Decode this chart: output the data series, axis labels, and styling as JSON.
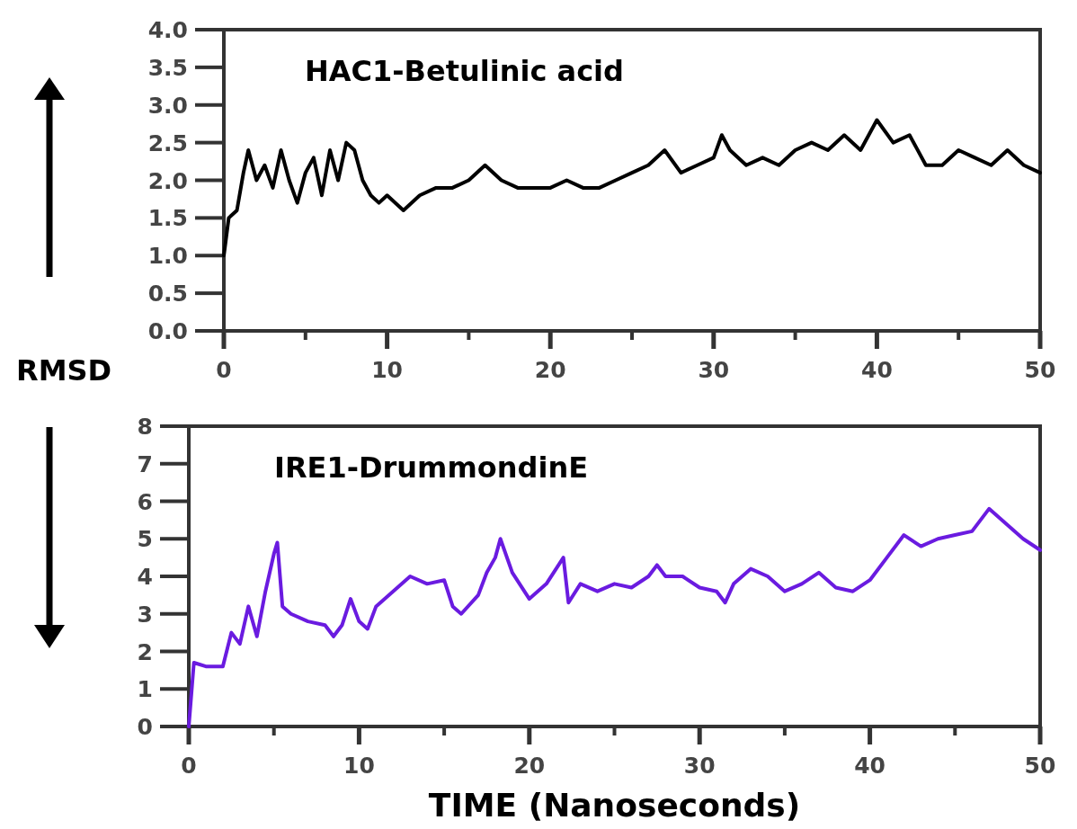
{
  "chart_data": [
    {
      "type": "line",
      "title": "HAC1-Betulinic acid",
      "ylabel": "RMSD",
      "xlim": [
        0,
        50
      ],
      "ylim": [
        0,
        4
      ],
      "xticks": [
        0,
        {
          "value": 5,
          "label": null
        },
        10,
        {
          "value": 15,
          "label": null
        },
        20,
        {
          "value": 25,
          "label": null
        },
        30,
        {
          "value": 35,
          "label": null
        },
        40,
        {
          "value": 45,
          "label": null
        },
        50
      ],
      "yticks": [
        {
          "value": 0,
          "label": "0.0"
        },
        0.5,
        {
          "value": 1,
          "label": "1.0"
        },
        1.5,
        {
          "value": 2,
          "label": "2.0"
        },
        2.5,
        {
          "value": 3,
          "label": "3.0"
        },
        3.5,
        {
          "value": 4,
          "label": "4.0"
        }
      ],
      "grid": false,
      "series": [
        {
          "color": "#000000",
          "x": [
            0,
            0.3,
            0.8,
            1.2,
            1.5,
            2,
            2.5,
            3,
            3.5,
            4,
            4.5,
            5,
            5.5,
            6,
            6.5,
            7,
            7.5,
            8,
            8.5,
            9,
            9.5,
            10,
            11,
            12,
            13,
            14,
            15,
            16,
            17,
            18,
            19,
            20,
            21,
            22,
            23,
            24,
            25,
            26,
            27,
            28,
            29,
            30,
            30.5,
            31,
            32,
            33,
            34,
            35,
            36,
            37,
            38,
            39,
            40,
            41,
            42,
            43,
            44,
            45,
            46,
            47,
            48,
            49,
            50
          ],
          "values": [
            1.0,
            1.5,
            1.6,
            2.1,
            2.4,
            2.0,
            2.2,
            1.9,
            2.4,
            2.0,
            1.7,
            2.1,
            2.3,
            1.8,
            2.4,
            2.0,
            2.5,
            2.4,
            2.0,
            1.8,
            1.7,
            1.8,
            1.6,
            1.8,
            1.9,
            1.9,
            2.0,
            2.2,
            2.0,
            1.9,
            1.9,
            1.9,
            2.0,
            1.9,
            1.9,
            2.0,
            2.1,
            2.2,
            2.4,
            2.1,
            2.2,
            2.3,
            2.6,
            2.4,
            2.2,
            2.3,
            2.2,
            2.4,
            2.5,
            2.4,
            2.6,
            2.4,
            2.8,
            2.5,
            2.6,
            2.2,
            2.2,
            2.4,
            2.3,
            2.2,
            2.4,
            2.2,
            2.1
          ]
        }
      ]
    },
    {
      "type": "line",
      "title": "IRE1-DrummondinE",
      "xlabel": "TIME (Nanoseconds)",
      "xlim": [
        0,
        50
      ],
      "ylim": [
        0,
        8
      ],
      "xticks": [
        0,
        {
          "value": 5,
          "label": null
        },
        10,
        {
          "value": 15,
          "label": null
        },
        20,
        {
          "value": 25,
          "label": null
        },
        30,
        {
          "value": 35,
          "label": null
        },
        40,
        {
          "value": 45,
          "label": null
        },
        50
      ],
      "yticks": [
        0,
        1,
        2,
        3,
        4,
        5,
        6,
        7,
        8
      ],
      "grid": false,
      "series": [
        {
          "color": "#6a1be0",
          "x": [
            0,
            0.3,
            1,
            2,
            2.5,
            3,
            3.5,
            4,
            4.5,
            5,
            5.2,
            5.5,
            6,
            7,
            8,
            8.5,
            9,
            9.5,
            10,
            10.5,
            11,
            12,
            13,
            14,
            15,
            15.5,
            16,
            17,
            17.5,
            18,
            18.3,
            19,
            20,
            21,
            22,
            22.3,
            23,
            24,
            25,
            26,
            27,
            27.5,
            28,
            29,
            30,
            31,
            31.5,
            32,
            33,
            34,
            35,
            36,
            37,
            38,
            39,
            40,
            41,
            42,
            43,
            44,
            45,
            46,
            47,
            48,
            49,
            50
          ],
          "values": [
            0,
            1.7,
            1.6,
            1.6,
            2.5,
            2.2,
            3.2,
            2.4,
            3.6,
            4.6,
            4.9,
            3.2,
            3.0,
            2.8,
            2.7,
            2.4,
            2.7,
            3.4,
            2.8,
            2.6,
            3.2,
            3.6,
            4.0,
            3.8,
            3.9,
            3.2,
            3.0,
            3.5,
            4.1,
            4.5,
            5.0,
            4.1,
            3.4,
            3.8,
            4.5,
            3.3,
            3.8,
            3.6,
            3.8,
            3.7,
            4.0,
            4.3,
            4.0,
            4.0,
            3.7,
            3.6,
            3.3,
            3.8,
            4.2,
            4.0,
            3.6,
            3.8,
            4.1,
            3.7,
            3.6,
            3.9,
            4.5,
            5.1,
            4.8,
            5.0,
            5.1,
            5.2,
            5.8,
            5.4,
            5.0,
            4.7
          ]
        }
      ]
    }
  ]
}
